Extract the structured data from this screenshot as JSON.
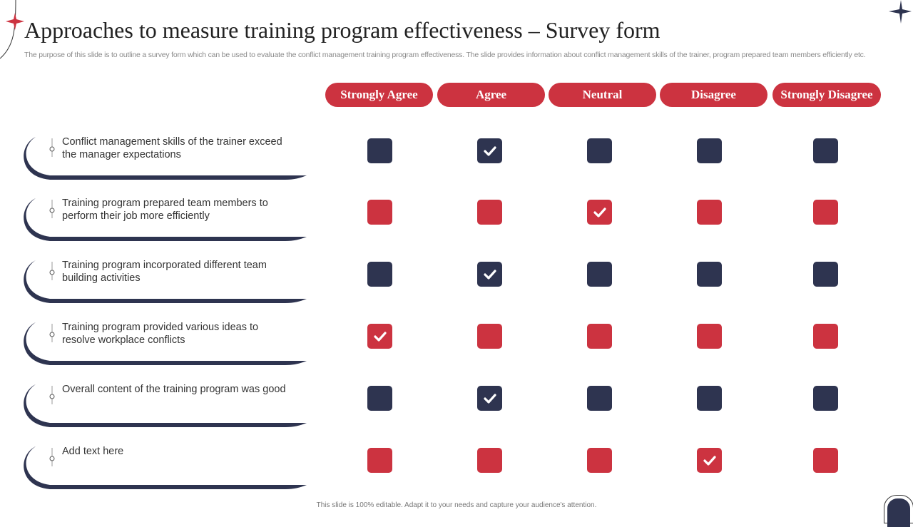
{
  "title": "Approaches to measure training program effectiveness – Survey form",
  "subtitle": "The purpose of this slide is to outline a survey form which can be used to evaluate the conflict management training program effectiveness. The slide provides information about conflict management skills of the trainer, program prepared team members efficiently etc.",
  "colors": {
    "navy": "#2e3450",
    "red": "#cc3340"
  },
  "columns": [
    "Strongly Agree",
    "Agree",
    "Neutral",
    "Disagree",
    "Strongly Disagree"
  ],
  "rows": [
    {
      "label": "Conflict management skills of the trainer exceed the manager expectations",
      "color": "navy",
      "checked": "Agree"
    },
    {
      "label": "Training program prepared team members to perform their job more efficiently",
      "color": "red",
      "checked": "Neutral"
    },
    {
      "label": "Training program incorporated different team building activities",
      "color": "navy",
      "checked": "Agree"
    },
    {
      "label": "Training program provided various ideas to resolve workplace conflicts",
      "color": "red",
      "checked": "Strongly Agree"
    },
    {
      "label": "Overall content of the training program was good",
      "color": "navy",
      "checked": "Agree"
    },
    {
      "label": "Add text here",
      "color": "red",
      "checked": "Disagree"
    }
  ],
  "footer": "This slide is 100% editable. Adapt it to your needs and capture your audience's attention."
}
